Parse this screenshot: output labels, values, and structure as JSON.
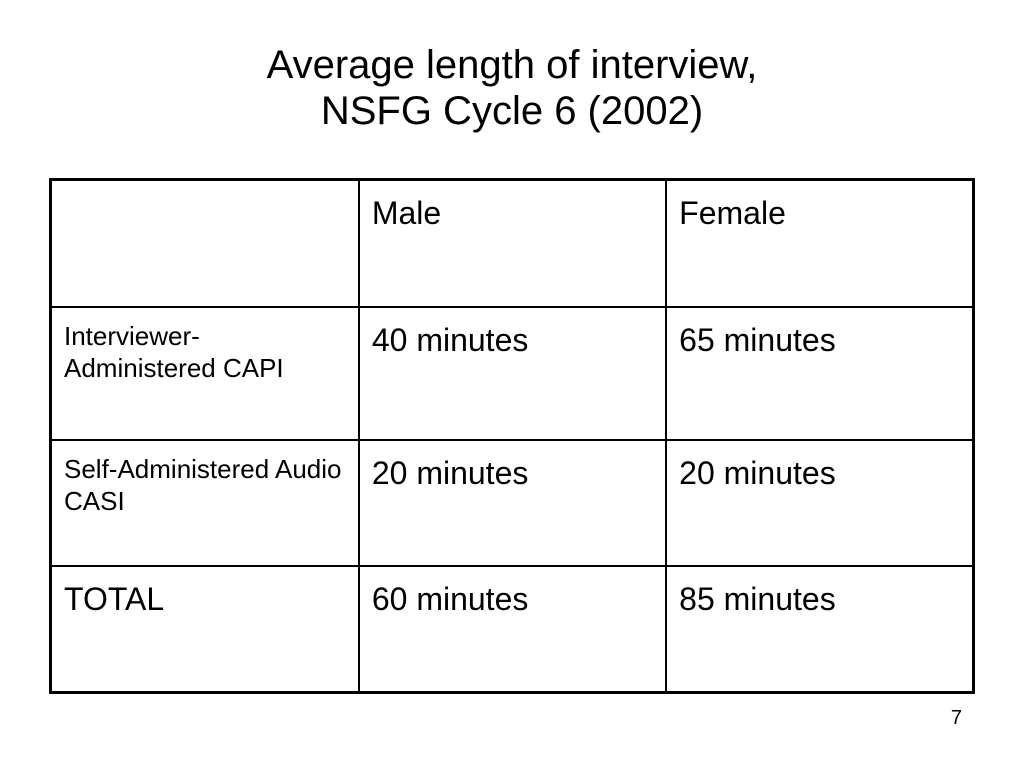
{
  "slide": {
    "title_line1": "Average length of interview,",
    "title_line2": "NSFG Cycle 6 (2002)",
    "page_number": "7"
  },
  "table": {
    "columns": [
      "",
      "Male",
      "Female"
    ],
    "rows": [
      {
        "label": "Interviewer-Administered CAPI",
        "male": "40 minutes",
        "female": "65 minutes"
      },
      {
        "label": "Self-Administered Audio CASI",
        "male": "20 minutes",
        "female": "20 minutes"
      },
      {
        "label": "TOTAL",
        "male": "60 minutes",
        "female": "85 minutes"
      }
    ]
  }
}
